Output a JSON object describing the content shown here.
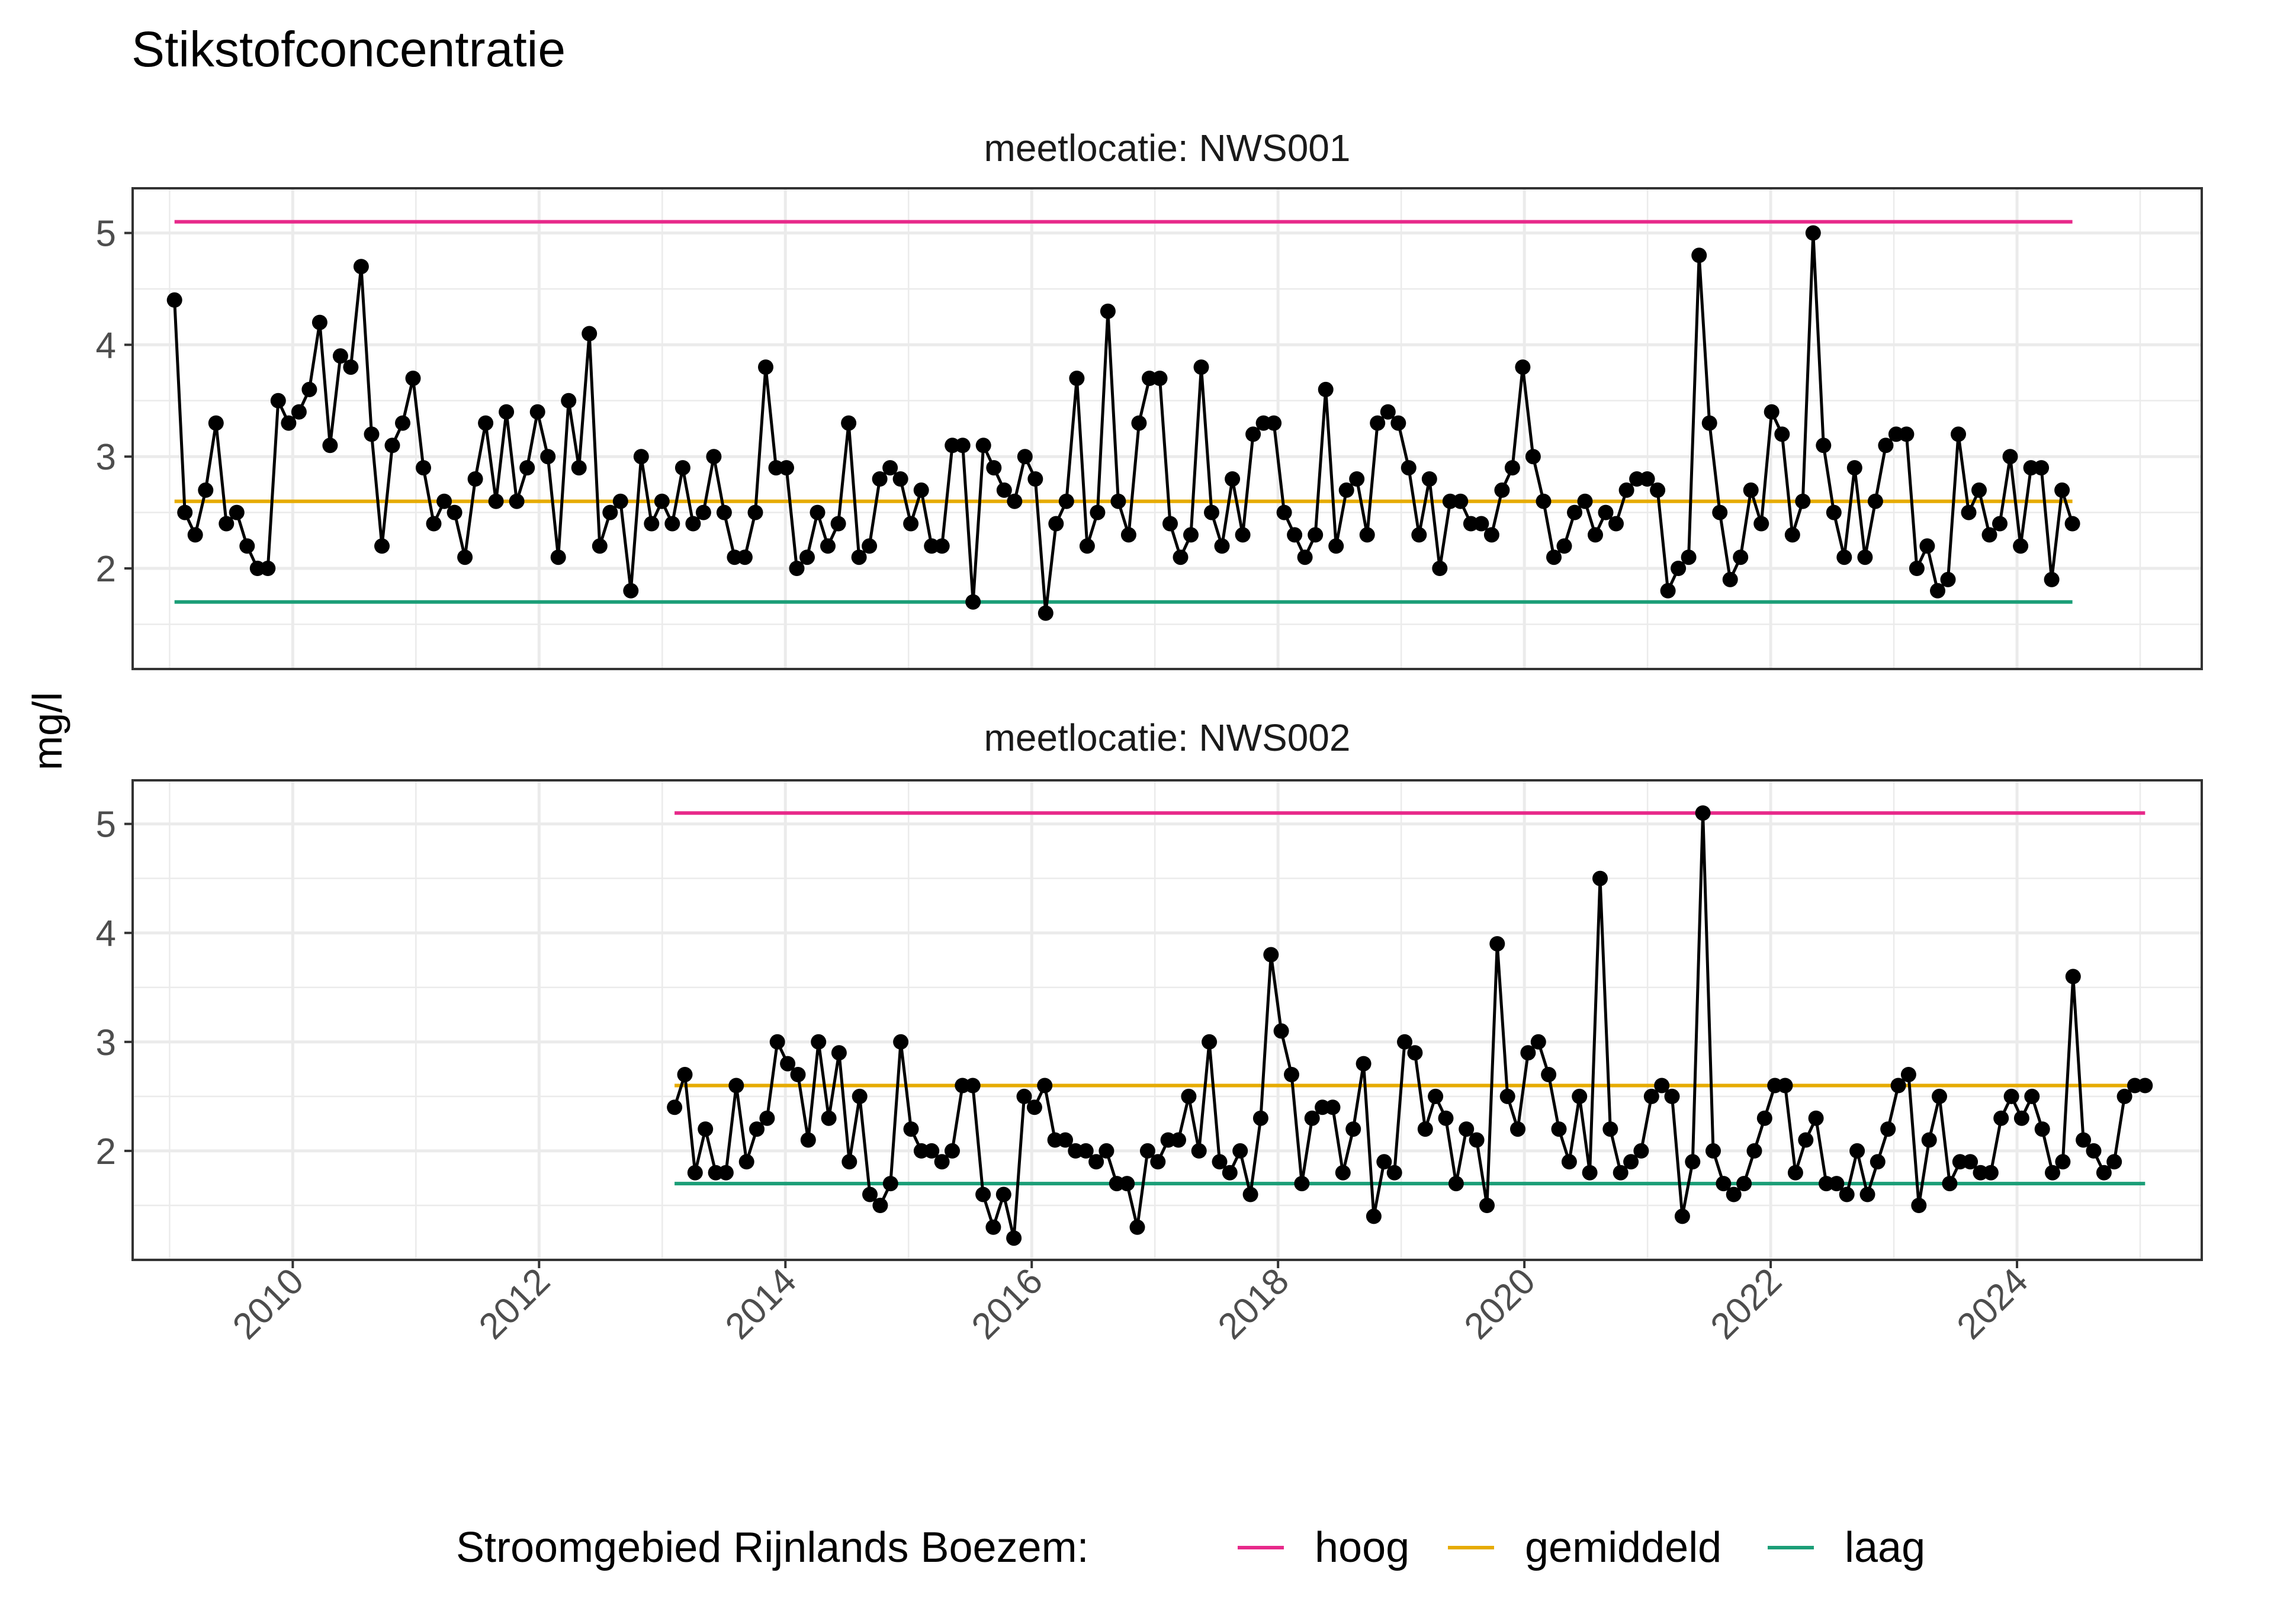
{
  "chart_data": {
    "type": "line",
    "title": "Stikstofconcentratie",
    "ylabel": "mg/l",
    "xlabel": "",
    "x_ticks": [
      "2010",
      "2012",
      "2014",
      "2016",
      "2018",
      "2020",
      "2022",
      "2024"
    ],
    "y_ticks": [
      "2",
      "3",
      "4",
      "5"
    ],
    "xlim": [
      2008.7,
      2025.5
    ],
    "grid": true,
    "legend": {
      "title": "Stroomgebied Rijnlands Boezem:",
      "position": "bottom",
      "entries": [
        {
          "label": "hoog",
          "color": "#E7298A"
        },
        {
          "label": "gemiddeld",
          "color": "#E6AB02"
        },
        {
          "label": "laag",
          "color": "#1B9E77"
        }
      ]
    },
    "panels": [
      {
        "name": "meetlocatie: NWS001",
        "ylim": [
          1.1,
          5.4
        ],
        "reference_lines": {
          "hoog": 5.1,
          "gemiddeld": 2.6,
          "laag": 1.7
        },
        "x_range": [
          2009.04,
          2024.45
        ],
        "values": [
          4.4,
          2.5,
          2.3,
          2.7,
          3.3,
          2.4,
          2.5,
          2.2,
          2.0,
          2.0,
          3.5,
          3.3,
          3.4,
          3.6,
          4.2,
          3.1,
          3.9,
          3.8,
          4.7,
          3.2,
          2.2,
          3.1,
          3.3,
          3.7,
          2.9,
          2.4,
          2.6,
          2.5,
          2.1,
          2.8,
          3.3,
          2.6,
          3.4,
          2.6,
          2.9,
          3.4,
          3.0,
          2.1,
          3.5,
          2.9,
          4.1,
          2.2,
          2.5,
          2.6,
          1.8,
          3.0,
          2.4,
          2.6,
          2.4,
          2.9,
          2.4,
          2.5,
          3.0,
          2.5,
          2.1,
          2.1,
          2.5,
          3.8,
          2.9,
          2.9,
          2.0,
          2.1,
          2.5,
          2.2,
          2.4,
          3.3,
          2.1,
          2.2,
          2.8,
          2.9,
          2.8,
          2.4,
          2.7,
          2.2,
          2.2,
          3.1,
          3.1,
          1.7,
          3.1,
          2.9,
          2.7,
          2.6,
          3.0,
          2.8,
          1.6,
          2.4,
          2.6,
          3.7,
          2.2,
          2.5,
          4.3,
          2.6,
          2.3,
          3.3,
          3.7,
          3.7,
          2.4,
          2.1,
          2.3,
          3.8,
          2.5,
          2.2,
          2.8,
          2.3,
          3.2,
          3.3,
          3.3,
          2.5,
          2.3,
          2.1,
          2.3,
          3.6,
          2.2,
          2.7,
          2.8,
          2.3,
          3.3,
          3.4,
          3.3,
          2.9,
          2.3,
          2.8,
          2.0,
          2.6,
          2.6,
          2.4,
          2.4,
          2.3,
          2.7,
          2.9,
          3.8,
          3.0,
          2.6,
          2.1,
          2.2,
          2.5,
          2.6,
          2.3,
          2.5,
          2.4,
          2.7,
          2.8,
          2.8,
          2.7,
          1.8,
          2.0,
          2.1,
          4.8,
          3.3,
          2.5,
          1.9,
          2.1,
          2.7,
          2.4,
          3.4,
          3.2,
          2.3,
          2.6,
          5.0,
          3.1,
          2.5,
          2.1,
          2.9,
          2.1,
          2.6,
          3.1,
          3.2,
          3.2,
          2.0,
          2.2,
          1.8,
          1.9,
          3.2,
          2.5,
          2.7,
          2.3,
          2.4,
          3.0,
          2.2,
          2.9,
          2.9,
          1.9,
          2.7,
          2.4
        ]
      },
      {
        "name": "meetlocatie: NWS002",
        "ylim": [
          1.0,
          5.4
        ],
        "reference_lines": {
          "hoog": 5.1,
          "gemiddeld": 2.6,
          "laag": 1.7
        },
        "x_range": [
          2013.1,
          2025.04
        ],
        "values": [
          2.4,
          2.7,
          1.8,
          2.2,
          1.8,
          1.8,
          2.6,
          1.9,
          2.2,
          2.3,
          3.0,
          2.8,
          2.7,
          2.1,
          3.0,
          2.3,
          2.9,
          1.9,
          2.5,
          1.6,
          1.5,
          1.7,
          3.0,
          2.2,
          2.0,
          2.0,
          1.9,
          2.0,
          2.6,
          2.6,
          1.6,
          1.3,
          1.6,
          1.2,
          2.5,
          2.4,
          2.6,
          2.1,
          2.1,
          2.0,
          2.0,
          1.9,
          2.0,
          1.7,
          1.7,
          1.3,
          2.0,
          1.9,
          2.1,
          2.1,
          2.5,
          2.0,
          3.0,
          1.9,
          1.8,
          2.0,
          1.6,
          2.3,
          3.8,
          3.1,
          2.7,
          1.7,
          2.3,
          2.4,
          2.4,
          1.8,
          2.2,
          2.8,
          1.4,
          1.9,
          1.8,
          3.0,
          2.9,
          2.2,
          2.5,
          2.3,
          1.7,
          2.2,
          2.1,
          1.5,
          3.9,
          2.5,
          2.2,
          2.9,
          3.0,
          2.7,
          2.2,
          1.9,
          2.5,
          1.8,
          4.5,
          2.2,
          1.8,
          1.9,
          2.0,
          2.5,
          2.6,
          2.5,
          1.4,
          1.9,
          5.1,
          2.0,
          1.7,
          1.6,
          1.7,
          2.0,
          2.3,
          2.6,
          2.6,
          1.8,
          2.1,
          2.3,
          1.7,
          1.7,
          1.6,
          2.0,
          1.6,
          1.9,
          2.2,
          2.6,
          2.7,
          1.5,
          2.1,
          2.5,
          1.7,
          1.9,
          1.9,
          1.8,
          1.8,
          2.3,
          2.5,
          2.3,
          2.5,
          2.2,
          1.8,
          1.9,
          3.6,
          2.1,
          2.0,
          1.8,
          1.9,
          2.5,
          2.6,
          2.6
        ]
      }
    ]
  }
}
